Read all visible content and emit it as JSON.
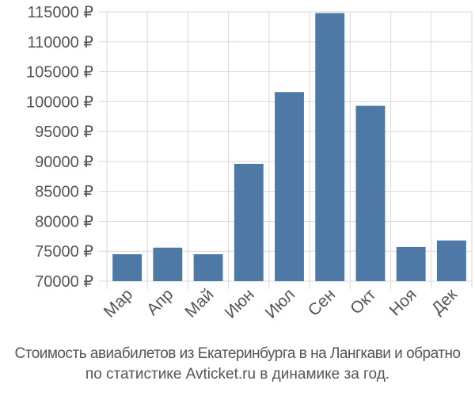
{
  "chart_data": {
    "type": "bar",
    "title": "",
    "xlabel": "",
    "ylabel": "",
    "categories": [
      "Мар",
      "Апр",
      "Май",
      "Июн",
      "Июл",
      "Сен",
      "Окт",
      "Ноя",
      "Дек"
    ],
    "values": [
      74500,
      75600,
      74500,
      89600,
      101600,
      114800,
      99300,
      75700,
      76800
    ],
    "ylim": [
      70000,
      115000
    ],
    "yticks": [
      70000,
      75000,
      80000,
      85000,
      90000,
      95000,
      100000,
      105000,
      110000,
      115000
    ],
    "currency_suffix": " ₽",
    "grid": true,
    "bar_color": "#4e79a7"
  },
  "caption": {
    "line1": "Стоимость авиабилетов из Екатеринбурга в на Лангкави и обратно",
    "line2": "по статистике Avticket.ru в динамике за год."
  }
}
